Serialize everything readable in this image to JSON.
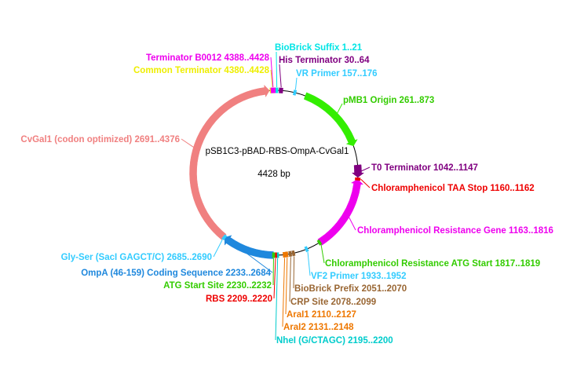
{
  "plasmid": {
    "name": "pSB1C3-pBAD-RBS-OmpA-CvGal1",
    "size_label": "4428 bp",
    "length": 4428
  },
  "features": [
    {
      "id": "biobrick-suffix",
      "label": "BioBrick Suffix 1..21",
      "start": 1,
      "end": 21,
      "color": "#00e5e5",
      "kind": "marker"
    },
    {
      "id": "his-terminator",
      "label": "His Terminator 30..64",
      "start": 30,
      "end": 64,
      "color": "#800080",
      "kind": "marker"
    },
    {
      "id": "vr-primer",
      "label": "VR Primer 157..176",
      "start": 157,
      "end": 176,
      "color": "#33ccff",
      "kind": "marker"
    },
    {
      "id": "pmb1-origin",
      "label": "pMB1 Origin 261..873",
      "start": 261,
      "end": 873,
      "color": "#33ee00",
      "kind": "arc"
    },
    {
      "id": "t0-terminator",
      "label": "T0 Terminator 1042..1147",
      "start": 1042,
      "end": 1147,
      "color": "#800080",
      "kind": "arc"
    },
    {
      "id": "cm-taa-stop",
      "label": "Chloramphenicol TAA Stop 1160..1162",
      "start": 1160,
      "end": 1162,
      "color": "#ee0000",
      "kind": "marker"
    },
    {
      "id": "cm-resistance",
      "label": "Chloramphenicol Resistance Gene 1163..1816",
      "start": 1163,
      "end": 1816,
      "color": "#ee00ee",
      "kind": "arc",
      "reverse": true
    },
    {
      "id": "cm-atg-start",
      "label": "Chloramphenicol Resistance ATG Start 1817..1819",
      "start": 1817,
      "end": 1819,
      "color": "#33cc00",
      "kind": "marker"
    },
    {
      "id": "vf2-primer",
      "label": "VF2 Primer 1933..1952",
      "start": 1933,
      "end": 1952,
      "color": "#33ccff",
      "kind": "marker"
    },
    {
      "id": "biobrick-prefix",
      "label": "BioBrick Prefix 2051..2070",
      "start": 2051,
      "end": 2070,
      "color": "#996633",
      "kind": "marker"
    },
    {
      "id": "crp-site",
      "label": "CRP Site 2078..2099",
      "start": 2078,
      "end": 2099,
      "color": "#996633",
      "kind": "marker"
    },
    {
      "id": "arai1",
      "label": "AraI1 2110..2127",
      "start": 2110,
      "end": 2127,
      "color": "#ee7700",
      "kind": "marker"
    },
    {
      "id": "arai2",
      "label": "AraI2 2131..2148",
      "start": 2131,
      "end": 2148,
      "color": "#ee7700",
      "kind": "marker"
    },
    {
      "id": "nhei",
      "label": "NheI (G/CTAGC) 2195..2200",
      "start": 2195,
      "end": 2200,
      "color": "#00cccc",
      "kind": "marker"
    },
    {
      "id": "rbs",
      "label": "RBS 2209..2220",
      "start": 2209,
      "end": 2220,
      "color": "#ee0000",
      "kind": "marker"
    },
    {
      "id": "atg-start-site",
      "label": "ATG Start Site 2230..2232",
      "start": 2230,
      "end": 2232,
      "color": "#33cc00",
      "kind": "marker"
    },
    {
      "id": "ompa-coding",
      "label": "OmpA (46-159) Coding Sequence 2233..2684",
      "start": 2233,
      "end": 2684,
      "color": "#1f88dd",
      "kind": "arc"
    },
    {
      "id": "gly-ser",
      "label": "Gly-Ser (SacI GAGCT/C)  2685..2690",
      "start": 2685,
      "end": 2690,
      "color": "#33ccff",
      "kind": "marker"
    },
    {
      "id": "cvgal1",
      "label": "CvGal1 (codon optimized) 2691..4376",
      "start": 2691,
      "end": 4376,
      "color": "#f08080",
      "kind": "arc"
    },
    {
      "id": "common-terminator",
      "label": "Common Terminator 4380..4428",
      "start": 4380,
      "end": 4428,
      "color": "#eeee00",
      "kind": "marker"
    },
    {
      "id": "terminator-b0012",
      "label": "Terminator B0012 4388..4428",
      "start": 4388,
      "end": 4428,
      "color": "#ee00ee",
      "kind": "marker"
    }
  ]
}
